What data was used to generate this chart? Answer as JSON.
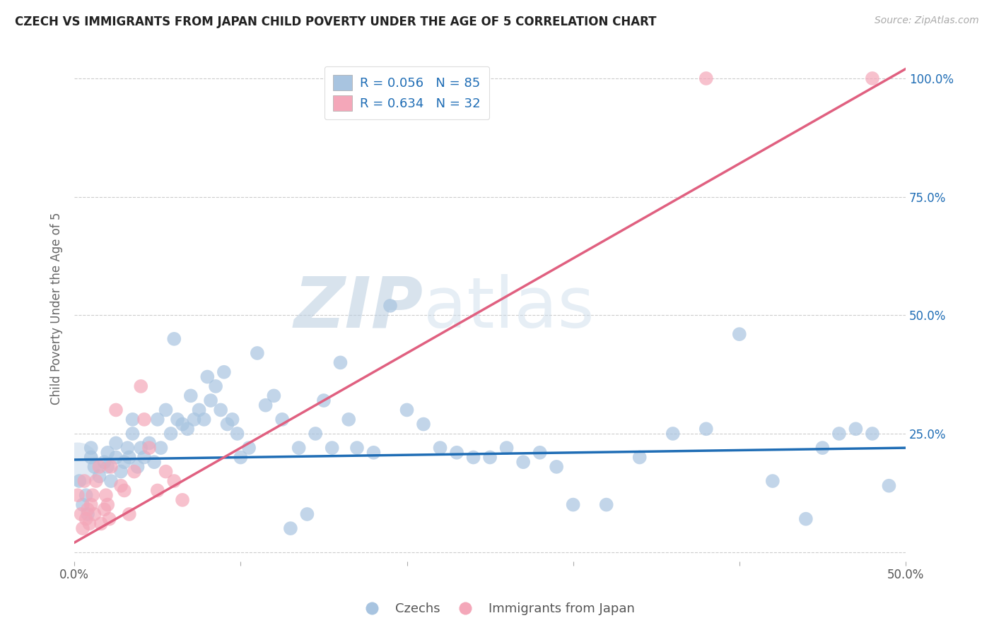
{
  "title": "CZECH VS IMMIGRANTS FROM JAPAN CHILD POVERTY UNDER THE AGE OF 5 CORRELATION CHART",
  "source": "Source: ZipAtlas.com",
  "ylabel": "Child Poverty Under the Age of 5",
  "xlim": [
    0.0,
    0.5
  ],
  "ylim": [
    -0.02,
    1.05
  ],
  "xticks": [
    0.0,
    0.1,
    0.2,
    0.3,
    0.4,
    0.5
  ],
  "xticklabels": [
    "0.0%",
    "",
    "",
    "",
    "",
    "50.0%"
  ],
  "yticks": [
    0.0,
    0.25,
    0.5,
    0.75,
    1.0
  ],
  "yticklabels": [
    "",
    "25.0%",
    "50.0%",
    "75.0%",
    "100.0%"
  ],
  "legend_r_czech": "R = 0.056",
  "legend_n_czech": "N = 85",
  "legend_r_japan": "R = 0.634",
  "legend_n_japan": "N = 32",
  "czech_color": "#a8c4e0",
  "japan_color": "#f4a7b9",
  "czech_line_color": "#1f6db5",
  "japan_line_color": "#e06080",
  "watermark_zip": "ZIP",
  "watermark_atlas": "atlas",
  "watermark_color": "#c8d8ea",
  "background_color": "#ffffff",
  "grid_color": "#cccccc",
  "czech_scatter_x": [
    0.003,
    0.005,
    0.007,
    0.008,
    0.01,
    0.01,
    0.012,
    0.015,
    0.018,
    0.02,
    0.02,
    0.022,
    0.025,
    0.025,
    0.028,
    0.03,
    0.032,
    0.033,
    0.035,
    0.035,
    0.038,
    0.04,
    0.042,
    0.045,
    0.048,
    0.05,
    0.052,
    0.055,
    0.058,
    0.06,
    0.062,
    0.065,
    0.068,
    0.07,
    0.072,
    0.075,
    0.078,
    0.08,
    0.082,
    0.085,
    0.088,
    0.09,
    0.092,
    0.095,
    0.098,
    0.1,
    0.105,
    0.11,
    0.115,
    0.12,
    0.125,
    0.13,
    0.135,
    0.14,
    0.145,
    0.15,
    0.155,
    0.16,
    0.165,
    0.17,
    0.18,
    0.19,
    0.2,
    0.21,
    0.22,
    0.23,
    0.24,
    0.25,
    0.26,
    0.27,
    0.28,
    0.29,
    0.3,
    0.32,
    0.34,
    0.36,
    0.38,
    0.4,
    0.42,
    0.44,
    0.45,
    0.46,
    0.47,
    0.48,
    0.49
  ],
  "czech_scatter_y": [
    0.15,
    0.1,
    0.12,
    0.08,
    0.2,
    0.22,
    0.18,
    0.16,
    0.19,
    0.18,
    0.21,
    0.15,
    0.23,
    0.2,
    0.17,
    0.19,
    0.22,
    0.2,
    0.25,
    0.28,
    0.18,
    0.22,
    0.2,
    0.23,
    0.19,
    0.28,
    0.22,
    0.3,
    0.25,
    0.45,
    0.28,
    0.27,
    0.26,
    0.33,
    0.28,
    0.3,
    0.28,
    0.37,
    0.32,
    0.35,
    0.3,
    0.38,
    0.27,
    0.28,
    0.25,
    0.2,
    0.22,
    0.42,
    0.31,
    0.33,
    0.28,
    0.05,
    0.22,
    0.08,
    0.25,
    0.32,
    0.22,
    0.4,
    0.28,
    0.22,
    0.21,
    0.52,
    0.3,
    0.27,
    0.22,
    0.21,
    0.2,
    0.2,
    0.22,
    0.19,
    0.21,
    0.18,
    0.1,
    0.1,
    0.2,
    0.25,
    0.26,
    0.46,
    0.15,
    0.07,
    0.22,
    0.25,
    0.26,
    0.25,
    0.14
  ],
  "japan_scatter_x": [
    0.002,
    0.004,
    0.005,
    0.006,
    0.007,
    0.008,
    0.009,
    0.01,
    0.011,
    0.012,
    0.013,
    0.015,
    0.016,
    0.018,
    0.019,
    0.02,
    0.021,
    0.022,
    0.025,
    0.028,
    0.03,
    0.033,
    0.036,
    0.04,
    0.042,
    0.045,
    0.05,
    0.055,
    0.06,
    0.065,
    0.48,
    0.38
  ],
  "japan_scatter_y": [
    0.12,
    0.08,
    0.05,
    0.15,
    0.07,
    0.09,
    0.06,
    0.1,
    0.12,
    0.08,
    0.15,
    0.18,
    0.06,
    0.09,
    0.12,
    0.1,
    0.07,
    0.18,
    0.3,
    0.14,
    0.13,
    0.08,
    0.17,
    0.35,
    0.28,
    0.22,
    0.13,
    0.17,
    0.15,
    0.11,
    1.0,
    1.0
  ],
  "czech_trend_x": [
    0.0,
    0.5
  ],
  "czech_trend_y": [
    0.195,
    0.22
  ],
  "japan_trend_x": [
    0.0,
    0.5
  ],
  "japan_trend_y": [
    0.02,
    1.02
  ]
}
